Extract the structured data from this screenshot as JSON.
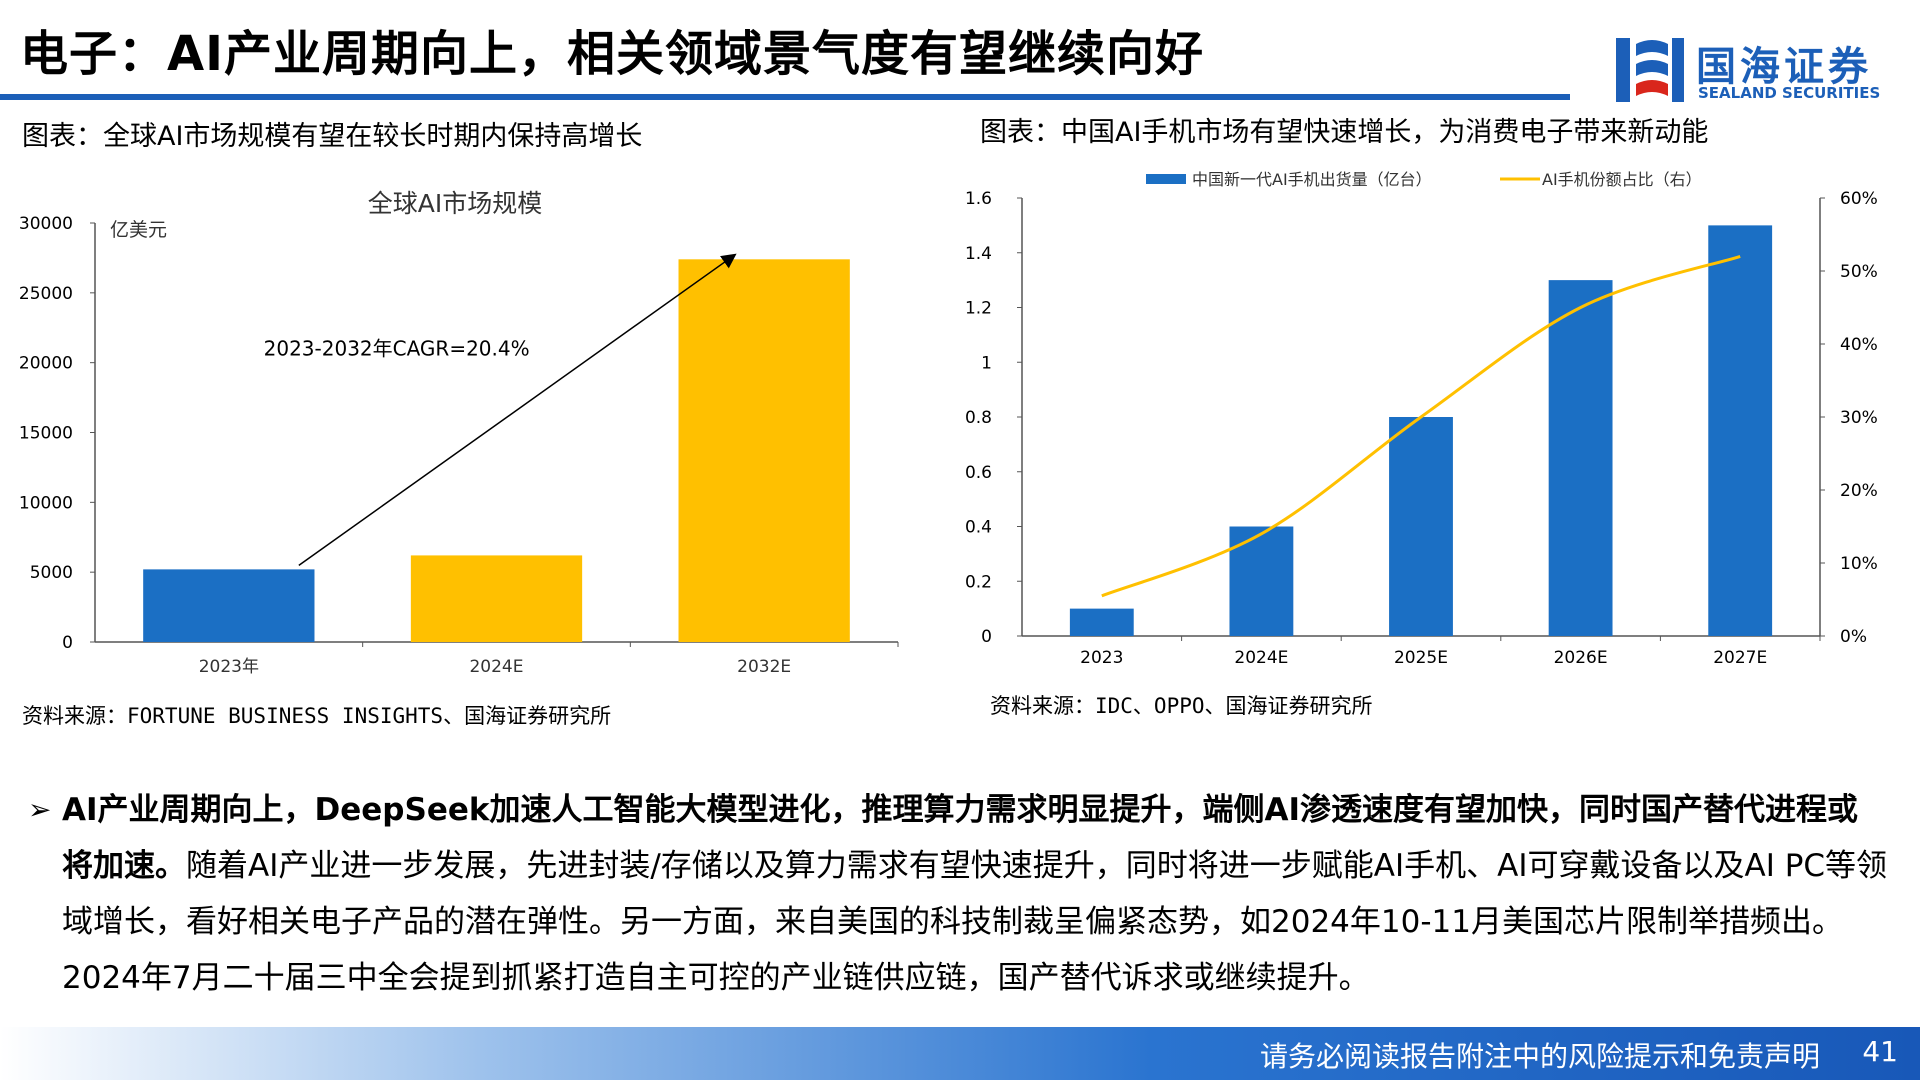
{
  "slide": {
    "title": "电子：AI产业周期向上，相关领域景气度有望继续向好",
    "page_number": "41",
    "footer_text": "请务必阅读报告附注中的风险提示和免责声明"
  },
  "logo": {
    "name_cn": "国海证券",
    "name_en": "SEALAND SECURITIES",
    "color": "#1c5fb8"
  },
  "left_chart": {
    "caption": "图表：全球AI市场规模有望在较长时期内保持高增长",
    "source": "资料来源：FORTUNE BUSINESS INSIGHTS、国海证券研究所"
  },
  "right_chart": {
    "caption": "图表：中国AI手机市场有望快速增长，为消费电子带来新动能",
    "source": "资料来源：IDC、OPPO、国海证券研究所"
  },
  "chart_data": [
    {
      "type": "bar",
      "title": "全球AI市场规模",
      "ylabel": "亿美元",
      "categories": [
        "2023年",
        "2024E",
        "2032E"
      ],
      "values": [
        5200,
        6200,
        27400
      ],
      "bar_colors": [
        "#1b6fc4",
        "#ffc000",
        "#ffc000"
      ],
      "ylim": [
        0,
        30000
      ],
      "yticks": [
        "0",
        "5000",
        "10000",
        "15000",
        "20000",
        "25000",
        "30000"
      ],
      "annotation": "2023-2032年CAGR=20.4%",
      "grid": false
    },
    {
      "type": "bar+line",
      "categories": [
        "2023",
        "2024E",
        "2025E",
        "2026E",
        "2027E"
      ],
      "series": [
        {
          "name": "中国新一代AI手机出货量（亿台）",
          "type": "bar",
          "axis": "left",
          "values": [
            0.1,
            0.4,
            0.8,
            1.3,
            1.5
          ],
          "color": "#1b6fc4"
        },
        {
          "name": "AI手机份额占比（右）",
          "type": "line",
          "axis": "right",
          "values": [
            5.5,
            14,
            30,
            45,
            52
          ],
          "color": "#ffc000"
        }
      ],
      "ylim_left": [
        0,
        1.6
      ],
      "yticks_left": [
        "0",
        "0.2",
        "0.4",
        "0.6",
        "0.8",
        "1",
        "1.2",
        "1.4",
        "1.6"
      ],
      "ylim_right": [
        0,
        60
      ],
      "yticks_right": [
        "0%",
        "10%",
        "20%",
        "30%",
        "40%",
        "50%",
        "60%"
      ],
      "legend_position": "top",
      "grid": false
    }
  ],
  "body": {
    "bullet": "➢",
    "bold_text": "AI产业周期向上，DeepSeek加速人工智能大模型进化，推理算力需求明显提升，端侧AI渗透速度有望加快，同时国产替代进程或将加速。",
    "normal_text": "随着AI产业进一步发展，先进封装/存储以及算力需求有望快速提升，同时将进一步赋能AI手机、AI可穿戴设备以及AI PC等领域增长，看好相关电子产品的潜在弹性。另一方面，来自美国的科技制裁呈偏紧态势，如2024年10-11月美国芯片限制举措频出。2024年7月二十届三中全会提到抓紧打造自主可控的产业链供应链，国产替代诉求或继续提升。"
  }
}
